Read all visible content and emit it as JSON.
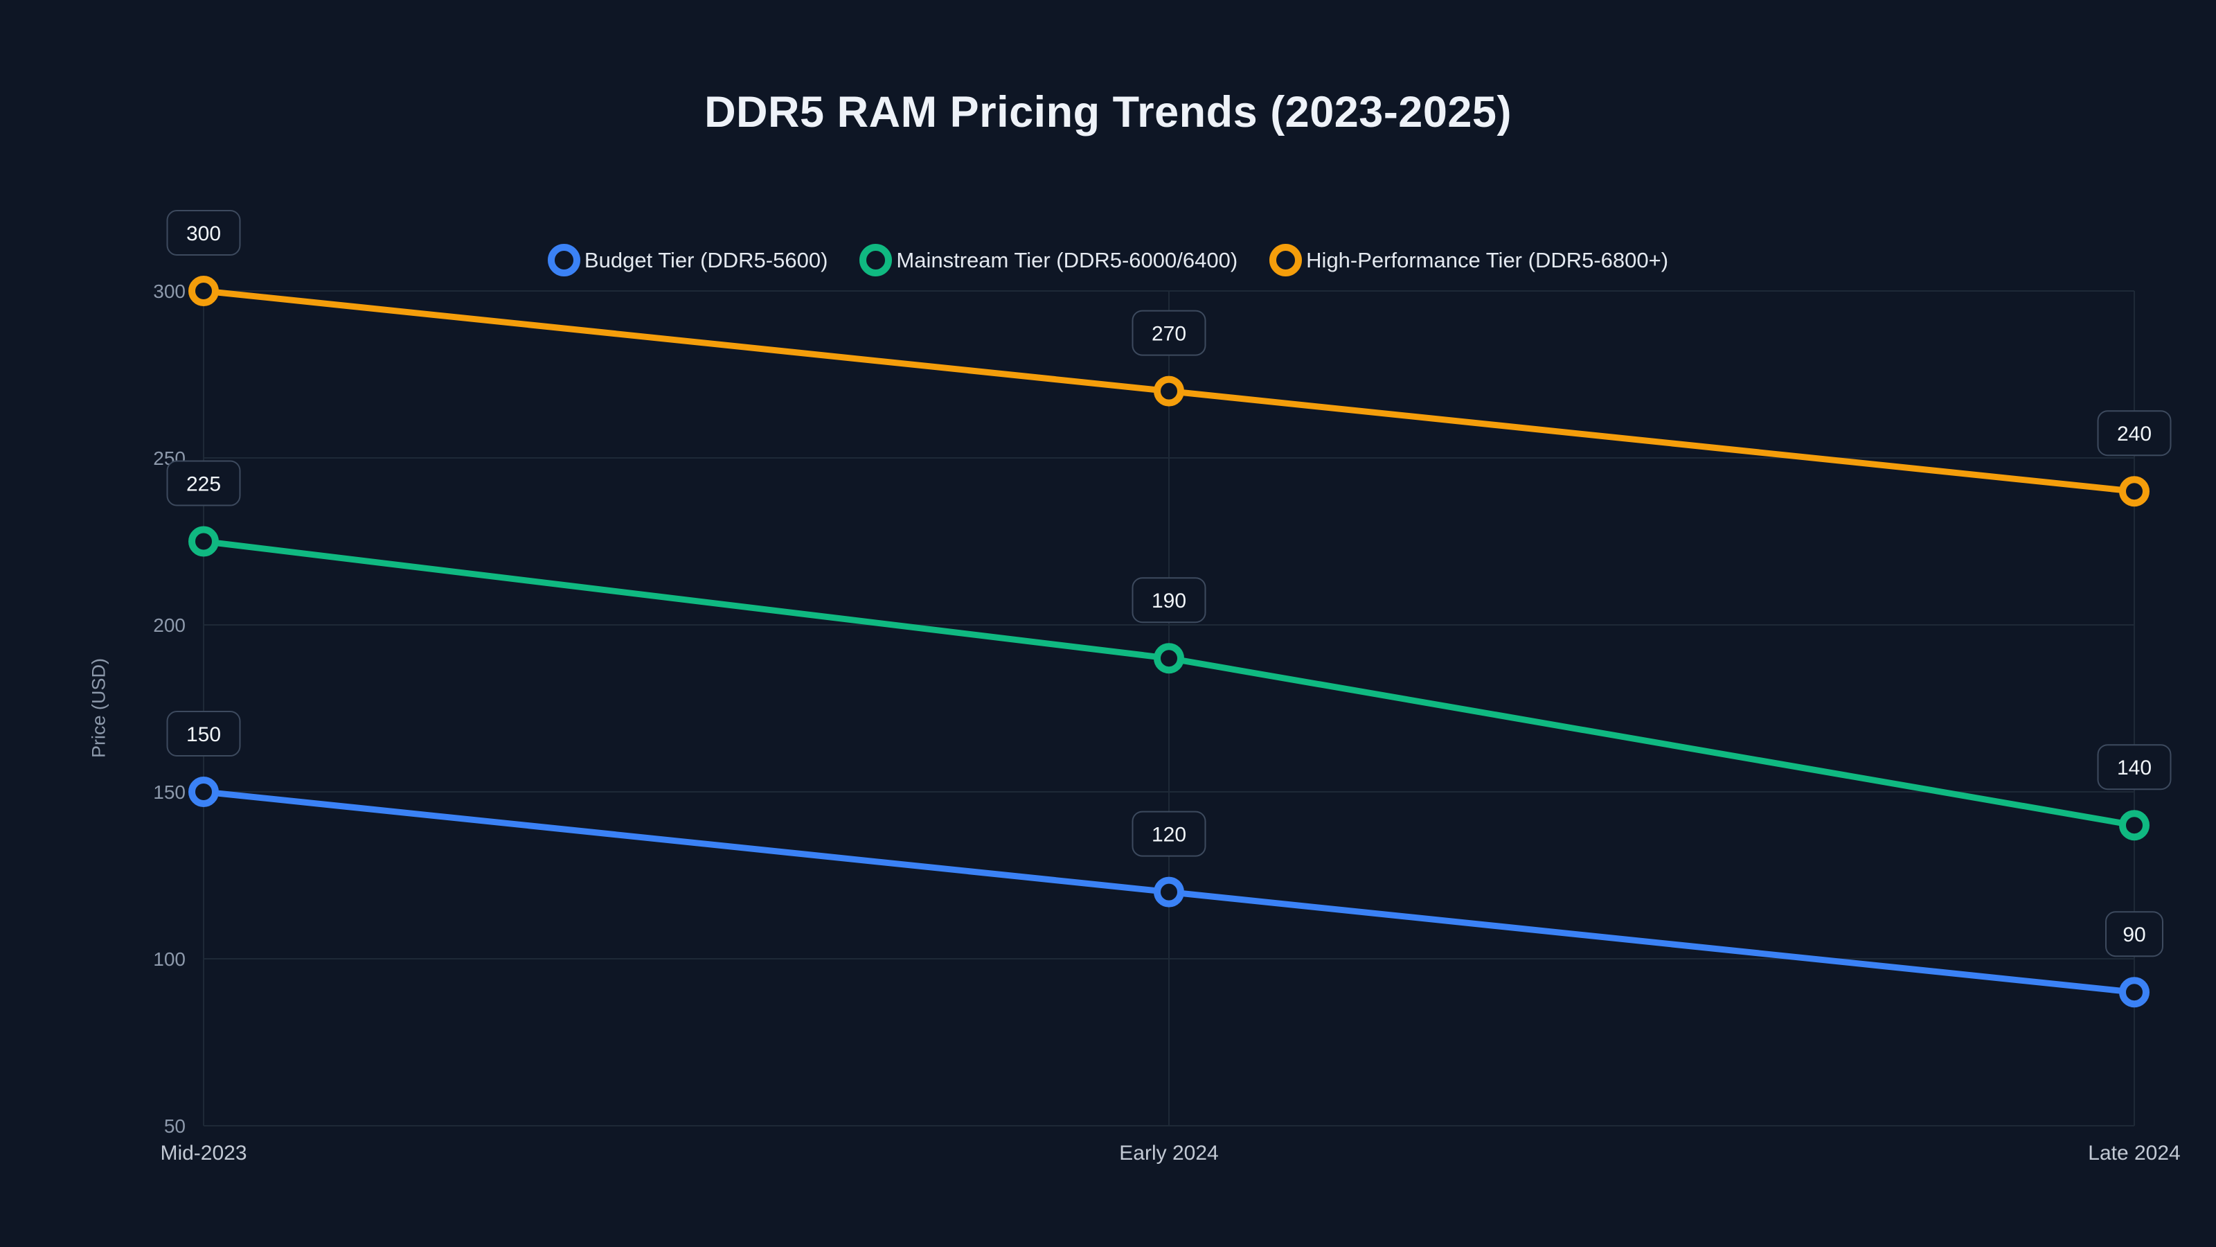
{
  "chart_data": {
    "type": "line",
    "title": "DDR5 RAM Pricing Trends (2023-2025)",
    "categories": [
      "Mid-2023",
      "Early 2024",
      "Late 2024"
    ],
    "series": [
      {
        "name": "Budget Tier (DDR5-5600)",
        "color": "#3b82f6",
        "values": [
          150,
          120,
          90
        ]
      },
      {
        "name": "Mainstream Tier (DDR5-6000/6400)",
        "color": "#10b981",
        "values": [
          225,
          190,
          140
        ]
      },
      {
        "name": "High-Performance Tier (DDR5-6800+)",
        "color": "#f59e0b",
        "values": [
          300,
          270,
          240
        ]
      }
    ],
    "xlabel": "",
    "ylabel": "Price (USD)",
    "ylim": [
      50,
      300
    ],
    "yticks": [
      50,
      100,
      150,
      200,
      250,
      300
    ],
    "grid": true,
    "legend_position": "top",
    "data_labels": true
  },
  "colors": {
    "background": "#0e1625",
    "grid": "#1e2937",
    "y_tick_text": "#8d99ab",
    "x_tick_text": "#c2c9d4",
    "label_box_border": "#3d4a5e",
    "label_text": "#f1f5f9",
    "title_text": "#eef2f8",
    "legend_text": "#e4e9f0"
  }
}
